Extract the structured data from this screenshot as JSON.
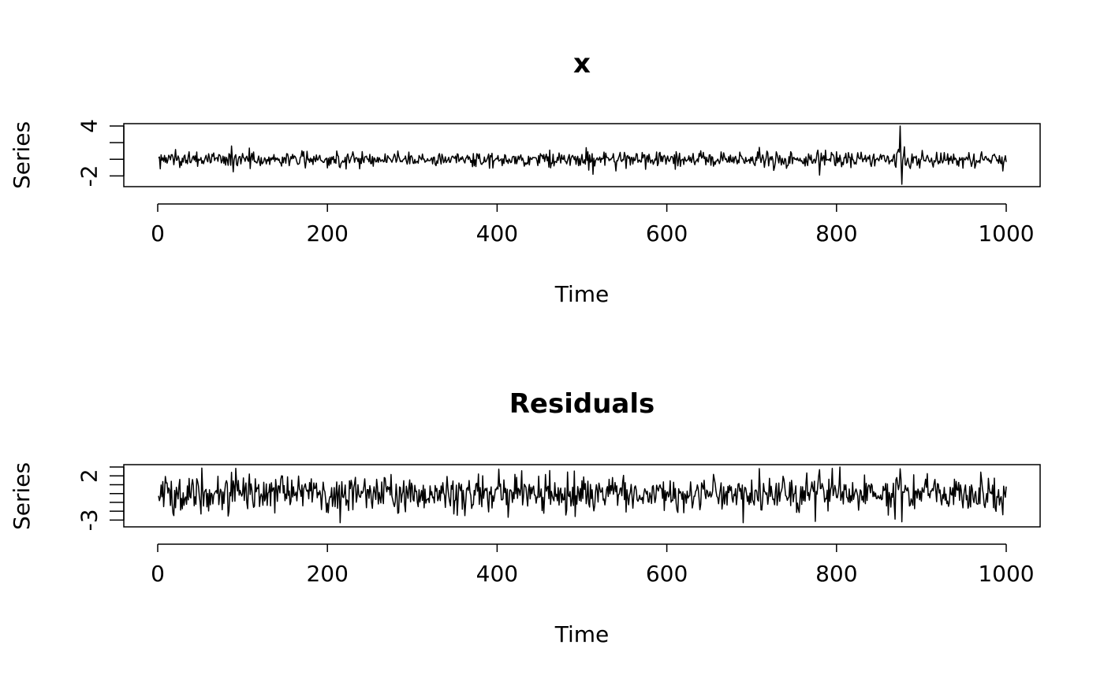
{
  "colors": {
    "background": "#ffffff",
    "foreground": "#000000"
  },
  "chart_data": [
    {
      "type": "line",
      "title": "x",
      "xlabel": "Time",
      "ylabel": "Series",
      "xlim": [
        0,
        1000
      ],
      "ylim": [
        -3,
        4
      ],
      "x_ticks": [
        0,
        200,
        400,
        600,
        800,
        1000
      ],
      "x_tick_labels": [
        "0",
        "200",
        "400",
        "600",
        "800",
        "1000"
      ],
      "y_ticks": [
        -2,
        0,
        2,
        4
      ],
      "y_tick_labels": [
        "-2",
        "",
        "",
        "4"
      ],
      "grid": false,
      "series": [
        {
          "n": 1000,
          "baseline": 0,
          "noise_sd": 0.45,
          "spikes": [
            {
              "x": 87,
              "y": 1.6
            },
            {
              "x": 89,
              "y": -1.5
            },
            {
              "x": 230,
              "y": 0.9
            },
            {
              "x": 283,
              "y": 1.0
            },
            {
              "x": 462,
              "y": 1.1
            },
            {
              "x": 505,
              "y": 1.4
            },
            {
              "x": 508,
              "y": -1.3
            },
            {
              "x": 513,
              "y": -1.8
            },
            {
              "x": 540,
              "y": -1.4
            },
            {
              "x": 575,
              "y": -1.2
            },
            {
              "x": 778,
              "y": 1.1
            },
            {
              "x": 780,
              "y": -1.9
            },
            {
              "x": 873,
              "y": 1.2
            },
            {
              "x": 875,
              "y": 4.0
            },
            {
              "x": 877,
              "y": -3.2
            },
            {
              "x": 880,
              "y": 1.5
            },
            {
              "x": 996,
              "y": -1.4
            }
          ]
        }
      ]
    },
    {
      "type": "line",
      "title": "Residuals",
      "xlabel": "Time",
      "ylabel": "Series",
      "xlim": [
        0,
        1000
      ],
      "ylim": [
        -3.5,
        3
      ],
      "x_ticks": [
        0,
        200,
        400,
        600,
        800,
        1000
      ],
      "x_tick_labels": [
        "0",
        "200",
        "400",
        "600",
        "800",
        "1000"
      ],
      "y_ticks": [
        -3,
        -2,
        -1,
        0,
        1,
        2,
        3
      ],
      "y_tick_labels": [
        "-3",
        "",
        "",
        "",
        "",
        "2",
        ""
      ],
      "grid": false,
      "series": [
        {
          "n": 1000,
          "baseline": 0,
          "noise_sd": 1.0,
          "spikes": [
            {
              "x": 87,
              "y": 2.4
            },
            {
              "x": 215,
              "y": -3.3
            },
            {
              "x": 362,
              "y": -2.5
            },
            {
              "x": 462,
              "y": 2.6
            },
            {
              "x": 492,
              "y": -2.6
            },
            {
              "x": 780,
              "y": 2.7
            },
            {
              "x": 869,
              "y": -2.9
            },
            {
              "x": 875,
              "y": 2.8
            },
            {
              "x": 877,
              "y": -3.2
            },
            {
              "x": 996,
              "y": -2.4
            }
          ]
        }
      ]
    }
  ]
}
